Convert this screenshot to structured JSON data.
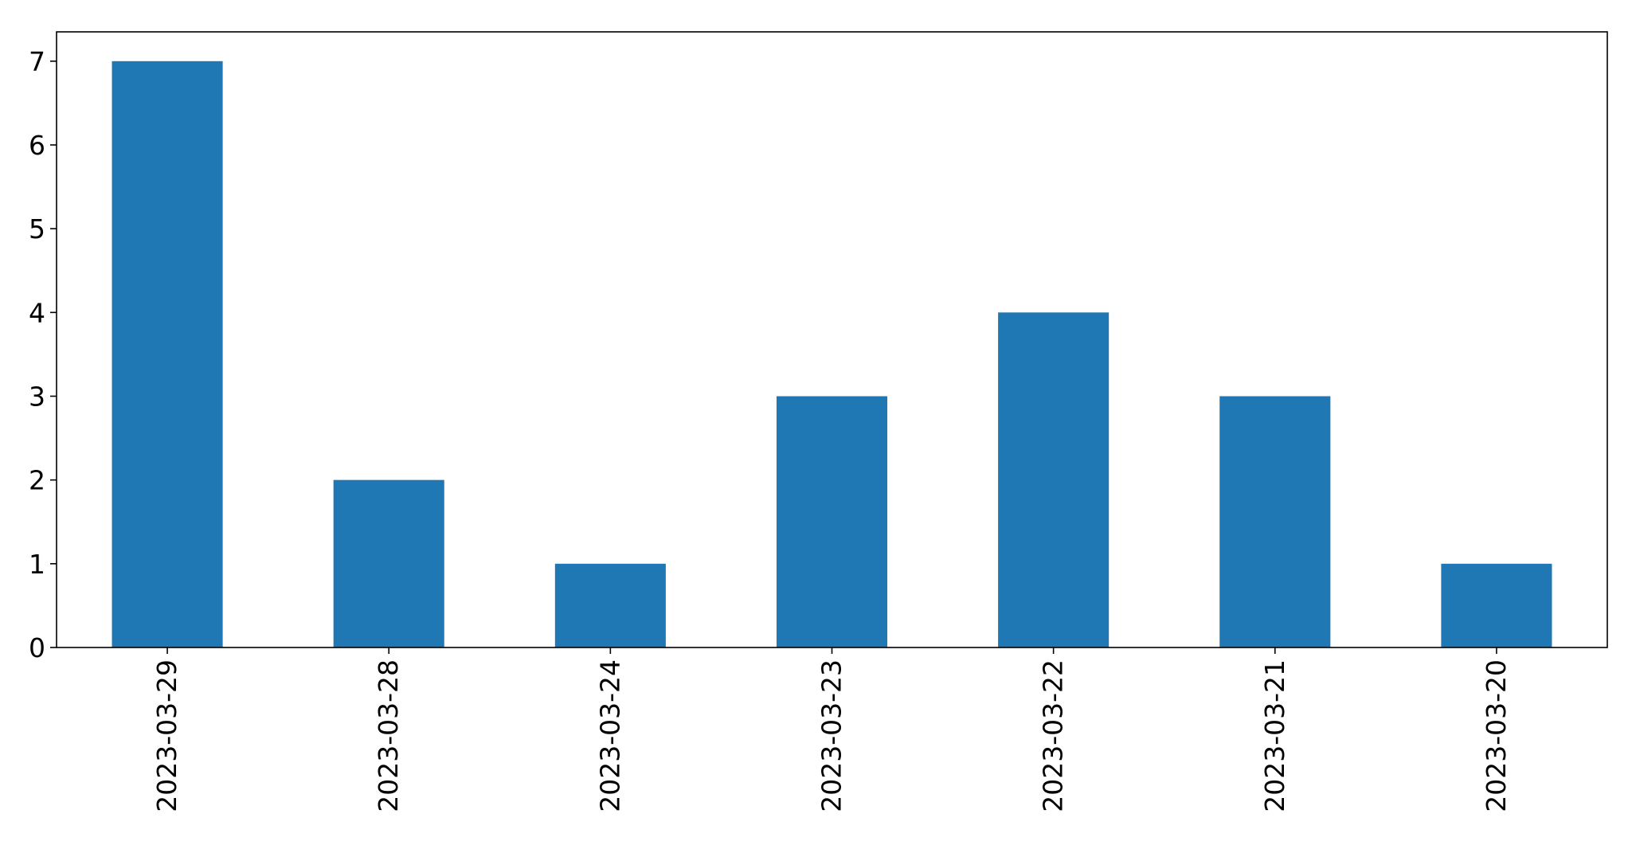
{
  "chart_data": {
    "type": "bar",
    "categories": [
      "2023-03-29",
      "2023-03-28",
      "2023-03-24",
      "2023-03-23",
      "2023-03-22",
      "2023-03-21",
      "2023-03-20"
    ],
    "values": [
      7,
      2,
      1,
      3,
      4,
      3,
      1
    ],
    "title": "",
    "xlabel": "",
    "ylabel": "",
    "ylim": [
      0,
      7.35
    ],
    "yticks": [
      0,
      1,
      2,
      3,
      4,
      5,
      6,
      7
    ],
    "grid": false,
    "legend": "none",
    "bar_color": "#1f77b4"
  }
}
